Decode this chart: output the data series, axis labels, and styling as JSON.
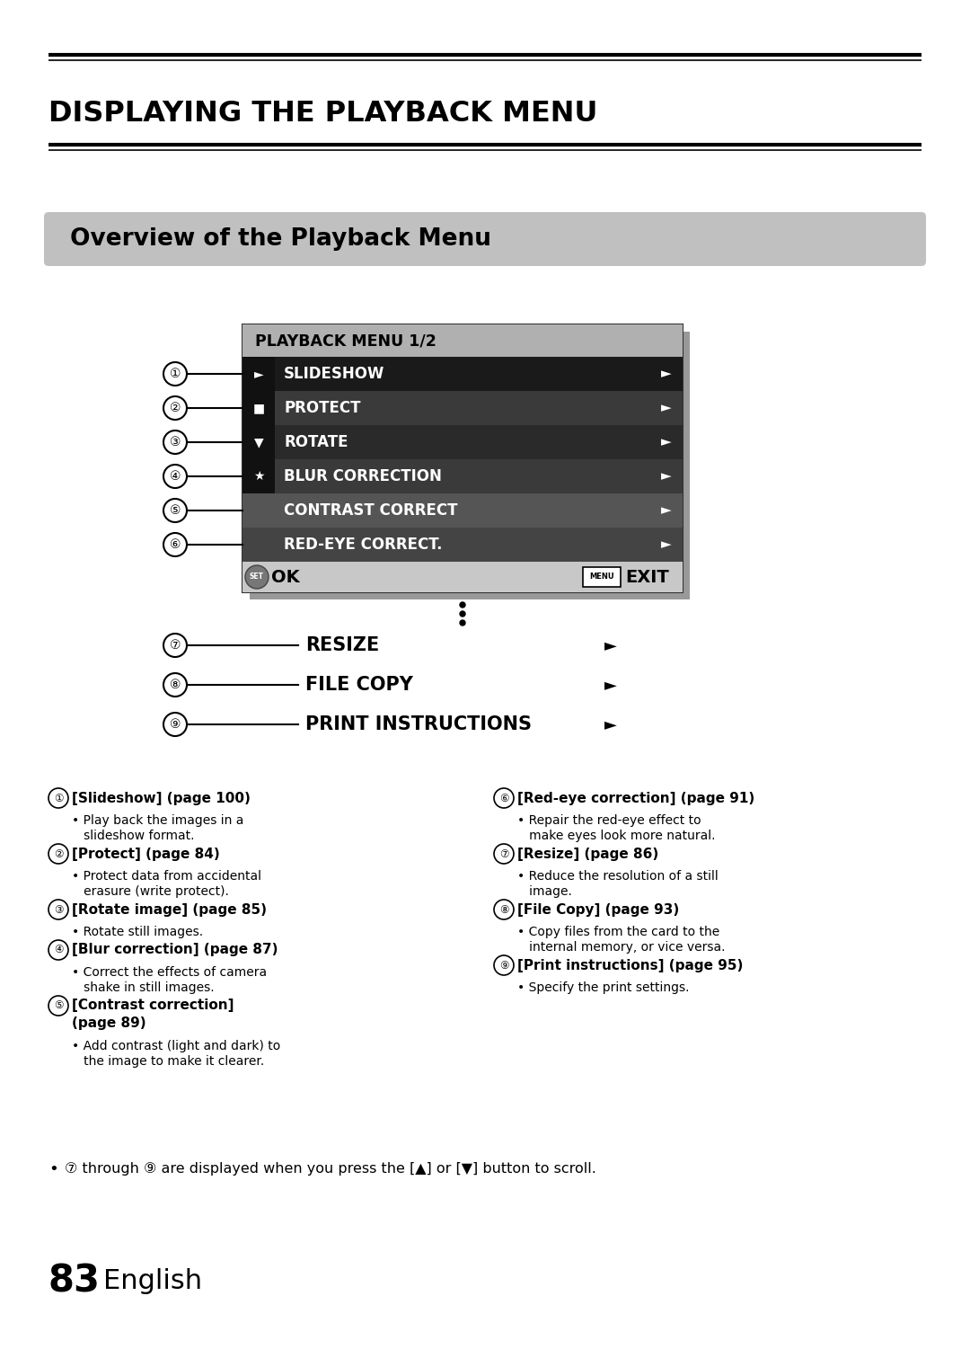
{
  "title": "DISPLAYING THE PLAYBACK MENU",
  "subtitle": "Overview of the Playback Menu",
  "menu_title": "PLAYBACK MENU 1/2",
  "menu_items": [
    {
      "label": "SLIDESHOW",
      "icon": "►",
      "icon_bg": "#111111",
      "row_bg": "#1a1a1a"
    },
    {
      "label": "PROTECT",
      "icon": "■",
      "icon_bg": "#111111",
      "row_bg": "#3a3a3a"
    },
    {
      "label": "ROTATE",
      "icon": "▼",
      "icon_bg": "#111111",
      "row_bg": "#2a2a2a"
    },
    {
      "label": "BLUR CORRECTION",
      "icon": "★",
      "icon_bg": "#111111",
      "row_bg": "#3a3a3a"
    },
    {
      "label": "CONTRAST CORRECT",
      "icon": null,
      "icon_bg": "#555555",
      "row_bg": "#555555"
    },
    {
      "label": "RED-EYE CORRECT.",
      "icon": null,
      "icon_bg": "#444444",
      "row_bg": "#444444"
    }
  ],
  "outside_items": [
    {
      "label": "RESIZE"
    },
    {
      "label": "FILE COPY"
    },
    {
      "label": "PRINT INSTRUCTIONS"
    }
  ],
  "desc_left": [
    {
      "num": "1",
      "head_bold": "[Slideshow] (page 100)",
      "body": [
        "Play back the images in a",
        "slideshow format."
      ]
    },
    {
      "num": "2",
      "head_bold": "[Protect] (page 84)",
      "body": [
        "Protect data from accidental",
        "erasure (write protect)."
      ]
    },
    {
      "num": "3",
      "head_bold": "[Rotate image] (page 85)",
      "body": [
        "Rotate still images."
      ]
    },
    {
      "num": "4",
      "head_bold": "[Blur correction] (page 87)",
      "body": [
        "Correct the effects of camera",
        "shake in still images."
      ]
    },
    {
      "num": "5",
      "head_bold": "[Contrast correction]",
      "head_bold2": "(page 89)",
      "body": [
        "Add contrast (light and dark) to",
        "the image to make it clearer."
      ]
    }
  ],
  "desc_right": [
    {
      "num": "6",
      "head_bold": "[Red-eye correction] (page 91)",
      "body": [
        "Repair the red-eye effect to",
        "make eyes look more natural."
      ]
    },
    {
      "num": "7",
      "head_bold": "[Resize] (page 86)",
      "body": [
        "Reduce the resolution of a still",
        "image."
      ]
    },
    {
      "num": "8",
      "head_bold": "[File Copy] (page 93)",
      "body": [
        "Copy files from the card to the",
        "internal memory, or vice versa."
      ]
    },
    {
      "num": "9",
      "head_bold": "[Print instructions] (page 95)",
      "body": [
        "Specify the print settings."
      ]
    }
  ],
  "num_circles": [
    "①",
    "②",
    "③",
    "④",
    "⑤",
    "⑥",
    "⑦",
    "⑧",
    "⑨"
  ],
  "footnote_7": "⑦",
  "footnote_9": "⑨",
  "page_num": "83",
  "page_label": "English",
  "bg_color": "#ffffff",
  "subtitle_bg": "#c0c0c0",
  "menu_title_bg": "#b0b0b0",
  "menu_outer_bg": "#888888",
  "ok_bar_bg": "#c8c8c8",
  "shadow_color": "#999999"
}
